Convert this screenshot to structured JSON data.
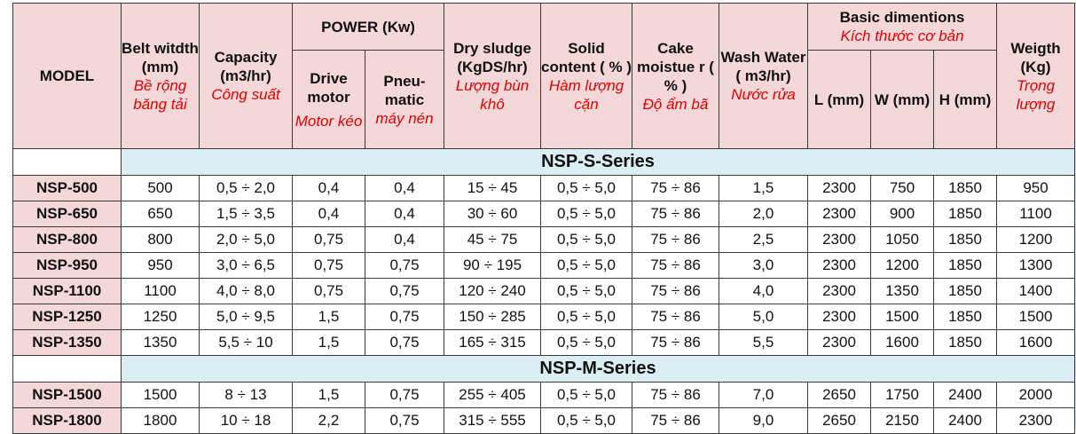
{
  "headers": {
    "model": "MODEL",
    "belt_width": {
      "en": "Belt witdth (mm)",
      "vi": "Bề rộng băng tải"
    },
    "capacity": {
      "en": "Capacity (m3/hr)",
      "vi": "Công suất"
    },
    "power": "POWER (Kw)",
    "drive_motor": {
      "en": "Drive motor",
      "vi": "Motor kéo"
    },
    "pneumatic": {
      "en": "Pneu-matic",
      "vi": "máy nén"
    },
    "dry_sludge": {
      "en": "Dry sludge (KgDS/hr)",
      "vi": "Lượng bùn khô"
    },
    "solid_content": {
      "en": "Solid content ( % )",
      "vi": "Hàm lượng cặn"
    },
    "cake_moisture": {
      "en": "Cake moistue r ( % )",
      "vi": "Độ ẩm bã"
    },
    "wash_water": {
      "en": "Wash Water ( m3/hr)",
      "vi": "Nước rửa"
    },
    "basic_dim": {
      "en": "Basic dimentions",
      "vi": "Kích thước cơ bản"
    },
    "dim_l": "L (mm)",
    "dim_w": "W (mm)",
    "dim_h": "H (mm)",
    "weight": {
      "en": "Weigth (Kg)",
      "vi": "Trọng lượng"
    }
  },
  "series_s": {
    "title": "NSP-S-Series",
    "rows": [
      {
        "model": "NSP-500",
        "belt": "500",
        "capacity": "0,5 ÷ 2,0",
        "drive": "0,4",
        "pneu": "0,4",
        "sludge": "15 ÷ 45",
        "solid": "0,5 ÷ 5,0",
        "moisture": "75 ÷ 86",
        "wash": "1,5",
        "l": "2300",
        "w": "750",
        "h": "1850",
        "weight": "950"
      },
      {
        "model": "NSP-650",
        "belt": "650",
        "capacity": "1,5 ÷ 3,5",
        "drive": "0,4",
        "pneu": "0,4",
        "sludge": "30 ÷ 60",
        "solid": "0,5 ÷ 5,0",
        "moisture": "75 ÷ 86",
        "wash": "2,0",
        "l": "2300",
        "w": "900",
        "h": "1850",
        "weight": "1100"
      },
      {
        "model": "NSP-800",
        "belt": "800",
        "capacity": "2,0 ÷ 5,0",
        "drive": "0,75",
        "pneu": "0,4",
        "sludge": "45 ÷ 75",
        "solid": "0,5 ÷ 5,0",
        "moisture": "75 ÷ 86",
        "wash": "2,5",
        "l": "2300",
        "w": "1050",
        "h": "1850",
        "weight": "1200"
      },
      {
        "model": "NSP-950",
        "belt": "950",
        "capacity": "3,0 ÷ 6,5",
        "drive": "0,75",
        "pneu": "0,75",
        "sludge": "90 ÷ 195",
        "solid": "0,5 ÷ 5,0",
        "moisture": "75 ÷ 86",
        "wash": "3,0",
        "l": "2300",
        "w": "1200",
        "h": "1850",
        "weight": "1300"
      },
      {
        "model": "NSP-1100",
        "belt": "1100",
        "capacity": "4,0 ÷ 8,0",
        "drive": "0,75",
        "pneu": "0,75",
        "sludge": "120 ÷ 240",
        "solid": "0,5 ÷ 5,0",
        "moisture": "75 ÷ 86",
        "wash": "4,0",
        "l": "2300",
        "w": "1350",
        "h": "1850",
        "weight": "1400"
      },
      {
        "model": "NSP-1250",
        "belt": "1250",
        "capacity": "5,0 ÷ 9,5",
        "drive": "1,5",
        "pneu": "0,75",
        "sludge": "150 ÷ 285",
        "solid": "0,5 ÷ 5,0",
        "moisture": "75 ÷ 86",
        "wash": "5,0",
        "l": "2300",
        "w": "1500",
        "h": "1850",
        "weight": "1500"
      },
      {
        "model": "NSP-1350",
        "belt": "1350",
        "capacity": "5,5 ÷ 10",
        "drive": "1,5",
        "pneu": "0,75",
        "sludge": "165 ÷ 315",
        "solid": "0,5 ÷ 5,0",
        "moisture": "75 ÷ 86",
        "wash": "5,5",
        "l": "2300",
        "w": "1600",
        "h": "1850",
        "weight": "1600"
      }
    ]
  },
  "series_m": {
    "title": "NSP-M-Series",
    "rows": [
      {
        "model": "NSP-1500",
        "belt": "1500",
        "capacity": "8 ÷ 13",
        "drive": "1,5",
        "pneu": "0,75",
        "sludge": "255 ÷ 405",
        "solid": "0,5 ÷ 5,0",
        "moisture": "75 ÷ 86",
        "wash": "7,0",
        "l": "2650",
        "w": "1750",
        "h": "2400",
        "weight": "2000"
      },
      {
        "model": "NSP-1800",
        "belt": "1800",
        "capacity": "10 ÷ 18",
        "drive": "2,2",
        "pneu": "0,75",
        "sludge": "315 ÷ 555",
        "solid": "0,5 ÷ 5,0",
        "moisture": "75 ÷ 86",
        "wash": "9,0",
        "l": "2650",
        "w": "2150",
        "h": "2400",
        "weight": "2300"
      }
    ]
  }
}
